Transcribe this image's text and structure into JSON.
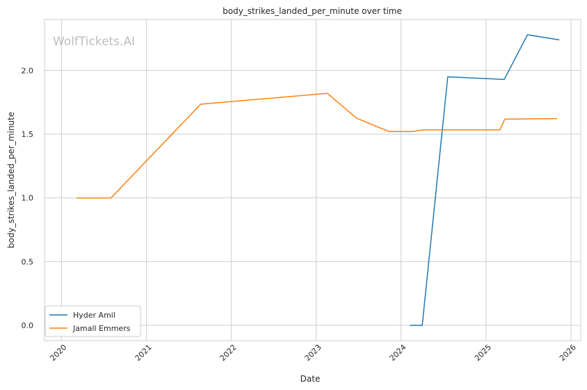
{
  "watermark": "WolfTickets.AI",
  "chart_data": {
    "type": "line",
    "title": "body_strikes_landed_per_minute over time",
    "xlabel": "Date",
    "ylabel": "body_strikes_landed_per_minute",
    "x_type": "date",
    "xlim": [
      "2019-10-20",
      "2026-02-12"
    ],
    "ylim": [
      -0.12,
      2.4
    ],
    "x_ticks": [
      {
        "date": "2020-01-01",
        "label": "2020"
      },
      {
        "date": "2021-01-01",
        "label": "2021"
      },
      {
        "date": "2022-01-01",
        "label": "2022"
      },
      {
        "date": "2023-01-01",
        "label": "2023"
      },
      {
        "date": "2024-01-01",
        "label": "2024"
      },
      {
        "date": "2025-01-01",
        "label": "2025"
      },
      {
        "date": "2026-01-01",
        "label": "2026"
      }
    ],
    "y_ticks": [
      0.0,
      0.5,
      1.0,
      1.5,
      2.0
    ],
    "y_tick_labels": [
      "0.0",
      "0.5",
      "1.0",
      "1.5",
      "2.0"
    ],
    "grid": true,
    "legend_position": "bottom-left",
    "series": [
      {
        "name": "Hyder Amil",
        "color": "#1f77b4",
        "points": [
          {
            "x": "2024-02-10",
            "y": 0.0
          },
          {
            "x": "2024-04-01",
            "y": 0.0
          },
          {
            "x": "2024-07-20",
            "y": 1.95
          },
          {
            "x": "2025-03-20",
            "y": 1.93
          },
          {
            "x": "2025-06-28",
            "y": 2.28
          },
          {
            "x": "2025-11-10",
            "y": 2.24
          }
        ]
      },
      {
        "name": "Jamall Emmers",
        "color": "#ff7f0e",
        "points": [
          {
            "x": "2020-03-07",
            "y": 1.0
          },
          {
            "x": "2020-08-01",
            "y": 1.0
          },
          {
            "x": "2021-08-22",
            "y": 1.735
          },
          {
            "x": "2023-02-18",
            "y": 1.82
          },
          {
            "x": "2023-06-24",
            "y": 1.625
          },
          {
            "x": "2023-11-11",
            "y": 1.52
          },
          {
            "x": "2024-02-17",
            "y": 1.52
          },
          {
            "x": "2024-04-06",
            "y": 1.533
          },
          {
            "x": "2025-03-01",
            "y": 1.533
          },
          {
            "x": "2025-03-22",
            "y": 1.618
          },
          {
            "x": "2025-11-01",
            "y": 1.622
          }
        ]
      }
    ]
  }
}
